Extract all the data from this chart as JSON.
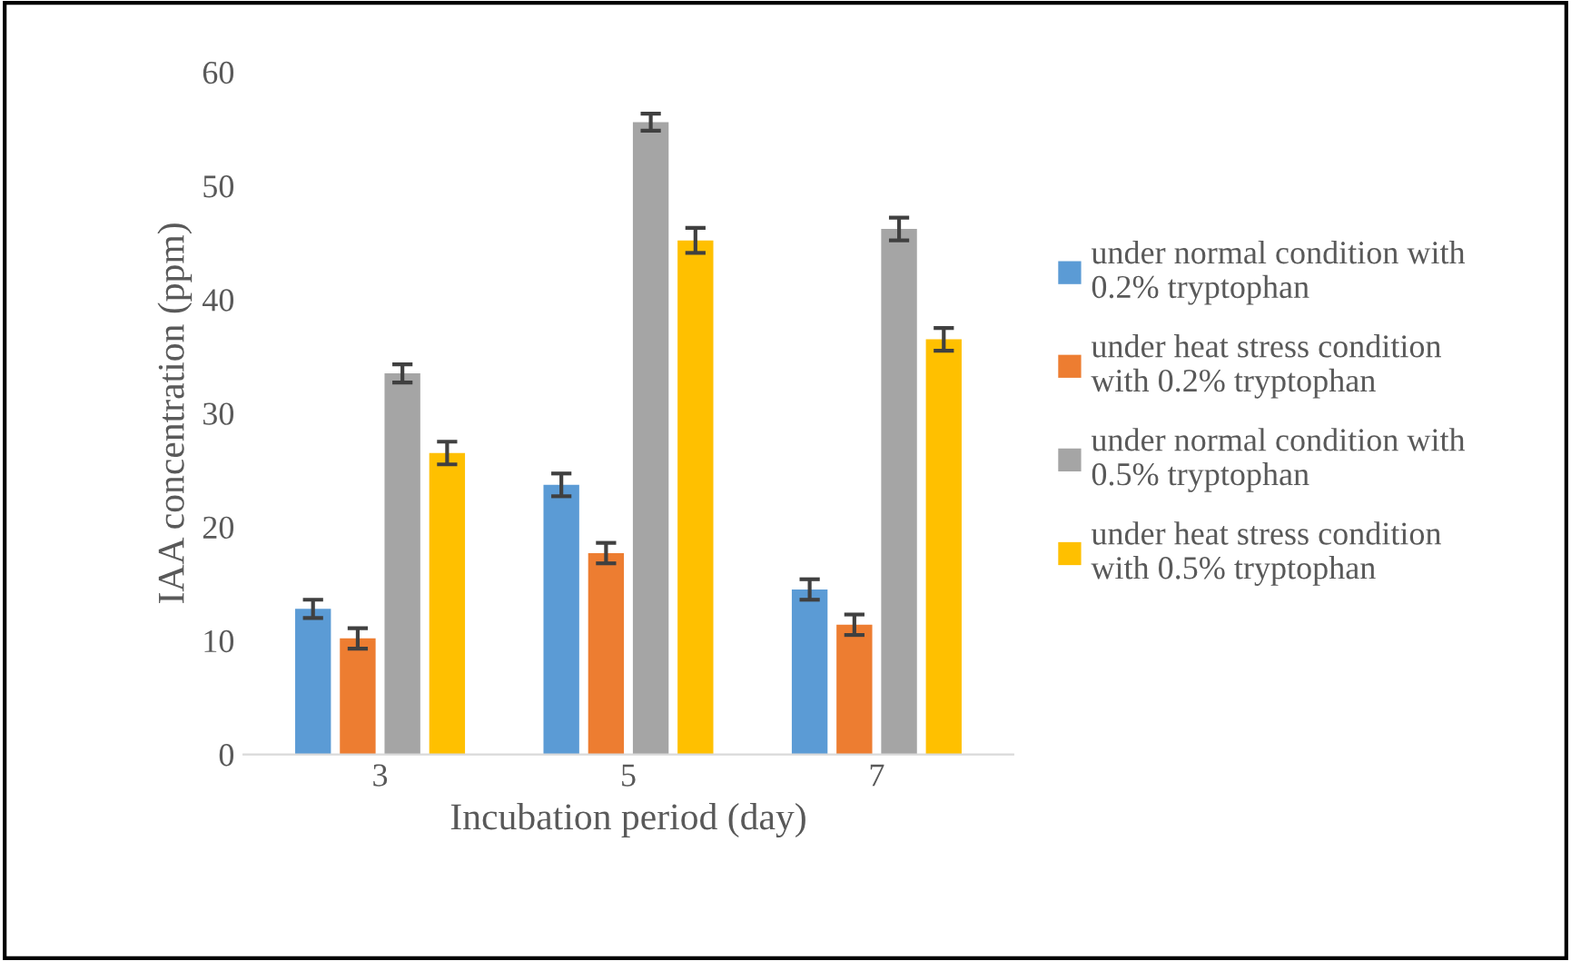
{
  "chart_data": {
    "type": "bar",
    "xlabel": "Incubation period (day)",
    "ylabel": "IAA concentration (ppm)",
    "categories": [
      "3",
      "5",
      "7"
    ],
    "series": [
      {
        "name": "under normal condition with\n0.2% tryptophan",
        "color": "#5b9bd5",
        "values": [
          12.8,
          23.7,
          14.5
        ],
        "errors": [
          0.8,
          1.0,
          0.9
        ]
      },
      {
        "name": "under heat stress condition\nwith 0.2% tryptophan",
        "color": "#ed7d31",
        "values": [
          10.2,
          17.7,
          11.4
        ],
        "errors": [
          0.9,
          0.9,
          0.9
        ]
      },
      {
        "name": "under normal condition with\n0.5% tryptophan",
        "color": "#a5a5a5",
        "values": [
          33.5,
          55.6,
          46.2
        ],
        "errors": [
          0.8,
          0.75,
          1.0
        ]
      },
      {
        "name": "under heat stress condition\nwith 0.5% tryptophan",
        "color": "#ffc000",
        "values": [
          26.5,
          45.2,
          36.5
        ],
        "errors": [
          1.0,
          1.1,
          1.0
        ]
      }
    ],
    "ylim": [
      0,
      60
    ],
    "yticks": [
      0,
      10,
      20,
      30,
      40,
      50,
      60
    ],
    "grid": false,
    "legend": "right"
  }
}
